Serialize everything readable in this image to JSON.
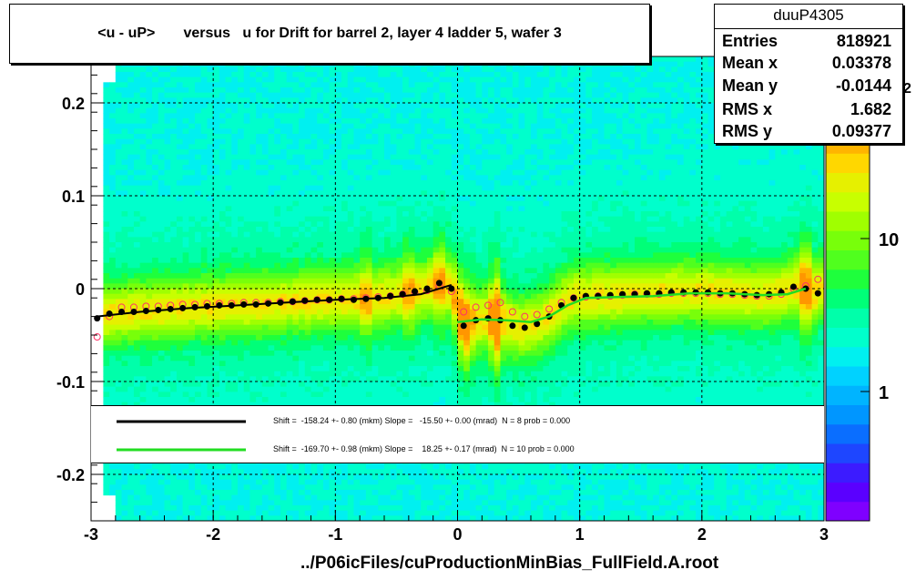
{
  "title": "<u - uP>       versus   u for Drift for barrel 2, layer 4 ladder 5, wafer 3",
  "stats": {
    "name": "duuP4305",
    "rows": [
      {
        "label": "Entries",
        "value": "818921"
      },
      {
        "label": "Mean x",
        "value": "0.03378"
      },
      {
        "label": "Mean y",
        "value": "-0.0144"
      },
      {
        "label": "RMS x",
        "value": "1.682"
      },
      {
        "label": "RMS y",
        "value": "0.09377"
      }
    ]
  },
  "file_label": "../P06icFiles/cuProductionMinBias_FullField.A.root",
  "legend": [
    {
      "text": "Shift =  -158.24 +- 0.80 (mkm) Slope =   -15.50 +- 0.00 (mrad)  N = 8 prob = 0.000",
      "color": "#000000"
    },
    {
      "text": "Shift =  -169.70 +- 0.98 (mkm) Slope =    18.25 +- 0.17 (mrad)  N = 10 prob = 0.000",
      "color": "#22dd22"
    }
  ],
  "colorbar": {
    "labels": [
      "10",
      "1"
    ],
    "exponent_fragment": "2",
    "colors": [
      "#7f00ff",
      "#5a00ff",
      "#3c1bff",
      "#1e46ff",
      "#0a6eff",
      "#0096ff",
      "#00b4ff",
      "#00d2ff",
      "#00f0f0",
      "#00ffcc",
      "#00ffaa",
      "#00ff78",
      "#1eff3c",
      "#50ff1e",
      "#78ff0a",
      "#a0ff00",
      "#c8ff00",
      "#e6f000",
      "#ffd700",
      "#ffb400",
      "#ff9600",
      "#ff7800",
      "#ff5a00",
      "#ff3c00"
    ]
  },
  "chart_data": {
    "type": "heatmap",
    "title": "<u - uP>       versus   u for Drift for barrel 2, layer 4 ladder 5, wafer 3",
    "xlabel": "",
    "ylabel": "",
    "xlim": [
      -3,
      3
    ],
    "ylim": [
      -0.25,
      0.25
    ],
    "xticks": [
      -3,
      -2,
      -1,
      0,
      1,
      2,
      3
    ],
    "xtick_labels": [
      "-3",
      "-2",
      "-1",
      "0",
      "1",
      "2",
      "3"
    ],
    "yticks": [
      -0.2,
      -0.1,
      0,
      0.1,
      0.2
    ],
    "ytick_labels": [
      "-0.2",
      "-0.1",
      "0",
      "0.1",
      "0.2"
    ],
    "grid": true,
    "series": [
      {
        "kind": "profile-black",
        "x": [
          -2.95,
          -2.85,
          -2.75,
          -2.65,
          -2.55,
          -2.45,
          -2.35,
          -2.25,
          -2.15,
          -2.05,
          -1.95,
          -1.85,
          -1.75,
          -1.65,
          -1.55,
          -1.45,
          -1.35,
          -1.25,
          -1.15,
          -1.05,
          -0.95,
          -0.85,
          -0.75,
          -0.65,
          -0.55,
          -0.45,
          -0.35,
          -0.25,
          -0.15,
          -0.05,
          0.05,
          0.15,
          0.25,
          0.35,
          0.45,
          0.55,
          0.65,
          0.75,
          0.85,
          0.95,
          1.05,
          1.15,
          1.25,
          1.35,
          1.45,
          1.55,
          1.65,
          1.75,
          1.85,
          1.95,
          2.05,
          2.15,
          2.25,
          2.35,
          2.45,
          2.55,
          2.65,
          2.75,
          2.85,
          2.95
        ],
        "y": [
          -0.032,
          -0.027,
          -0.025,
          -0.025,
          -0.024,
          -0.023,
          -0.022,
          -0.021,
          -0.02,
          -0.019,
          -0.018,
          -0.018,
          -0.017,
          -0.017,
          -0.016,
          -0.015,
          -0.014,
          -0.013,
          -0.012,
          -0.012,
          -0.011,
          -0.012,
          -0.011,
          -0.01,
          -0.008,
          -0.006,
          -0.003,
          0.0,
          0.006,
          0.0,
          -0.04,
          -0.034,
          -0.032,
          -0.034,
          -0.04,
          -0.042,
          -0.038,
          -0.03,
          -0.018,
          -0.01,
          -0.008,
          -0.008,
          -0.007,
          -0.006,
          -0.006,
          -0.005,
          -0.005,
          -0.004,
          -0.004,
          -0.004,
          -0.004,
          -0.005,
          -0.005,
          -0.006,
          -0.007,
          -0.006,
          -0.004,
          0.002,
          0.0,
          -0.005
        ]
      },
      {
        "kind": "profile-red-open",
        "x": [
          -2.95,
          -2.85,
          -2.75,
          -2.65,
          -2.55,
          -2.45,
          -2.35,
          -2.25,
          -2.15,
          -2.05,
          -1.95,
          -1.85,
          -1.75,
          -1.65,
          -1.55,
          -1.45,
          -1.35,
          -1.25,
          -1.15,
          -1.05,
          -0.95,
          -0.85,
          -0.75,
          -0.65,
          -0.55,
          -0.45,
          -0.35,
          -0.25,
          -0.15,
          -0.05,
          0.05,
          0.15,
          0.25,
          0.35,
          0.45,
          0.55,
          0.65,
          0.75,
          0.85,
          0.95,
          1.05,
          1.15,
          1.25,
          1.35,
          1.45,
          1.55,
          1.65,
          1.75,
          1.85,
          1.95,
          2.05,
          2.15,
          2.25,
          2.35,
          2.45,
          2.55,
          2.65,
          2.75,
          2.85,
          2.95
        ],
        "y": [
          -0.052,
          -0.03,
          -0.02,
          -0.02,
          -0.019,
          -0.019,
          -0.018,
          -0.017,
          -0.017,
          -0.016,
          -0.016,
          -0.016,
          -0.015,
          -0.015,
          -0.015,
          -0.014,
          -0.014,
          -0.013,
          -0.012,
          -0.012,
          -0.011,
          -0.011,
          -0.01,
          -0.009,
          -0.008,
          -0.006,
          -0.004,
          -0.002,
          0.003,
          -0.003,
          -0.025,
          -0.02,
          -0.018,
          -0.015,
          -0.025,
          -0.03,
          -0.028,
          -0.022,
          -0.015,
          -0.01,
          -0.009,
          -0.008,
          -0.008,
          -0.007,
          -0.006,
          -0.006,
          -0.006,
          -0.005,
          -0.005,
          -0.005,
          -0.005,
          -0.006,
          -0.006,
          -0.007,
          -0.008,
          -0.008,
          -0.006,
          0.0,
          0.003,
          0.01
        ]
      },
      {
        "kind": "fit-black",
        "x": [
          -2.95,
          -2.6,
          -2.2,
          -1.8,
          -1.4,
          -1.0,
          -0.6,
          -0.3,
          -0.15,
          -0.05
        ],
        "y": [
          -0.03,
          -0.025,
          -0.021,
          -0.018,
          -0.015,
          -0.012,
          -0.01,
          -0.006,
          0.0,
          0.004
        ]
      },
      {
        "kind": "fit-green",
        "x": [
          0.0,
          0.2,
          0.4,
          0.6,
          0.75,
          0.9,
          1.05,
          1.3,
          1.6,
          1.9,
          2.2,
          2.5,
          2.7,
          2.8,
          2.85
        ],
        "y": [
          -0.036,
          -0.033,
          -0.034,
          -0.036,
          -0.03,
          -0.018,
          -0.01,
          -0.009,
          -0.008,
          -0.005,
          -0.005,
          -0.007,
          -0.006,
          -0.002,
          0.0
        ]
      }
    ]
  }
}
